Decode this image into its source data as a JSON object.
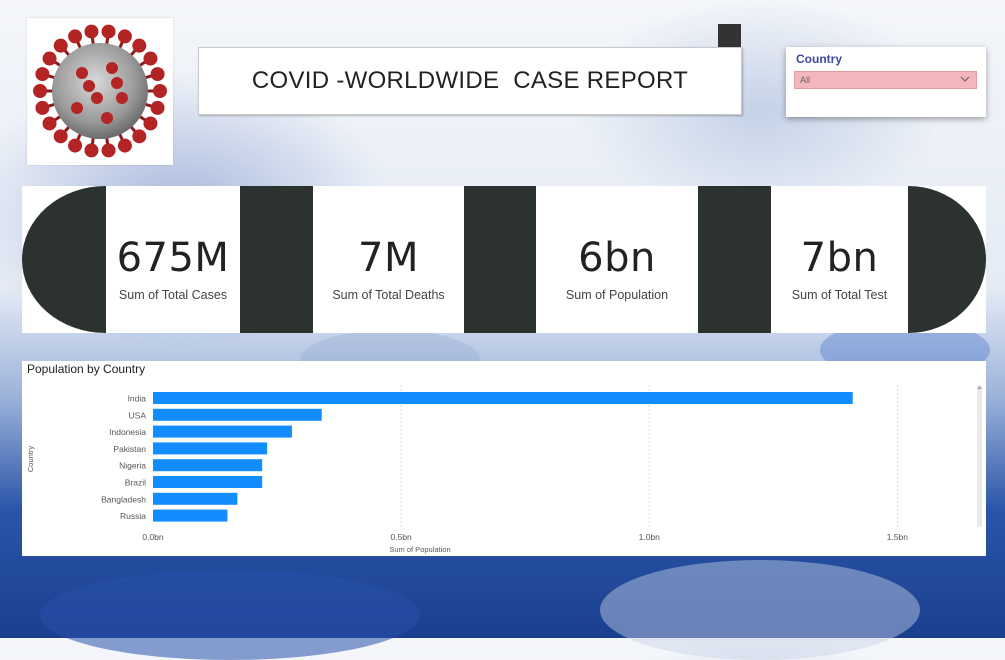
{
  "report": {
    "title": "COVID -WORLDWIDE  CASE REPORT"
  },
  "slicer": {
    "label": "Country",
    "value": "All",
    "icon": "chevron-down-icon"
  },
  "kpis": [
    {
      "value": "675M",
      "label": "Sum of Total Cases"
    },
    {
      "value": "7M",
      "label": "Sum of Total Deaths"
    },
    {
      "value": "6bn",
      "label": "Sum of Population"
    },
    {
      "value": "7bn",
      "label": "Sum of Total Test"
    }
  ],
  "colors": {
    "bar": "#118dff",
    "kpi_dark": "#2c3230",
    "slicer_fill": "#f2b6bc",
    "slicer_label": "#3a4aa0"
  },
  "chart_data": {
    "type": "bar",
    "orientation": "horizontal",
    "title": "Population by Country",
    "xlabel": "Sum of Population",
    "ylabel": "Country",
    "categories": [
      "India",
      "USA",
      "Indonesia",
      "Pakistan",
      "Nigeria",
      "Brazil",
      "Bangladesh",
      "Russia"
    ],
    "values": [
      1.41,
      0.34,
      0.28,
      0.23,
      0.22,
      0.22,
      0.17,
      0.15
    ],
    "value_unit": "bn",
    "xlim": [
      0,
      1.6
    ],
    "x_ticks": [
      "0.0bn",
      "0.5bn",
      "1.0bn",
      "1.5bn"
    ],
    "x_tick_values": [
      0,
      0.5,
      1.0,
      1.5
    ],
    "grid": true
  }
}
